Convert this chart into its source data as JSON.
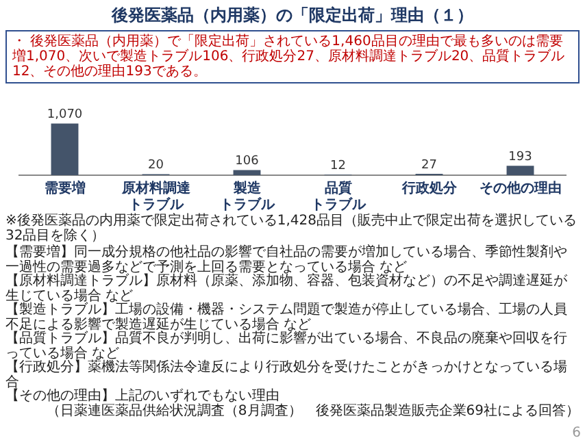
{
  "chart_data": {
    "type": "bar",
    "title": "後発医薬品（内用薬）の「限定出荷」理由（１）",
    "subtitle": "・ 後発医薬品（内用薬）で「限定出荷」されている1,460品目の理由で最も多いのは需要増1,070、次いで製造トラブル106、行政処分27、原材料調達トラブル20、品質トラブル12、その他の理由193である。",
    "categories": [
      "需要増",
      "原材料調達トラブル",
      "製造トラブル",
      "品質トラブル",
      "行政処分",
      "その他の理由"
    ],
    "values": [
      1070,
      20,
      106,
      12,
      27,
      193
    ],
    "color": "#44546a",
    "data_labels": true,
    "value_labels": [
      "1,070",
      "20",
      "106",
      "12",
      "27",
      "193"
    ],
    "annotations": [
      "※後発医薬品の内用薬で限定出荷されている1,428品目（販売中止で限定出荷を選択している32品目を除く）",
      "【需要増】同一成分規格の他社品の影響で自社品の需要が増加している場合、季節性製剤や一過性の需要過多などで予測を上回る需要となっている場合 など",
      "【原材料調達トラブル】原材料（原薬、添加物、容器、包装資材など）の不足や調達遅延が生じている場合 など",
      "【製造トラブル】工場の設備・機器・システム問題で製造が停止している場合、工場の人員不足による影響で製造遅延が生じている場合 など",
      "【品質トラブル】品質不良が判明し、出荷に影響が出ている場合、不良品の廃棄や回収を行っている場合 など",
      "【行政処分】薬機法等関係法令違反により行政処分を受けたことがきっかけとなっている場合",
      "【その他の理由】上記のいずれでもない理由",
      "（日薬連医薬品供給状況調査（8月調査）　後発医薬品製造販売企業69社による回答）",
      "6"
    ],
    "grid": false,
    "legend": false
  }
}
